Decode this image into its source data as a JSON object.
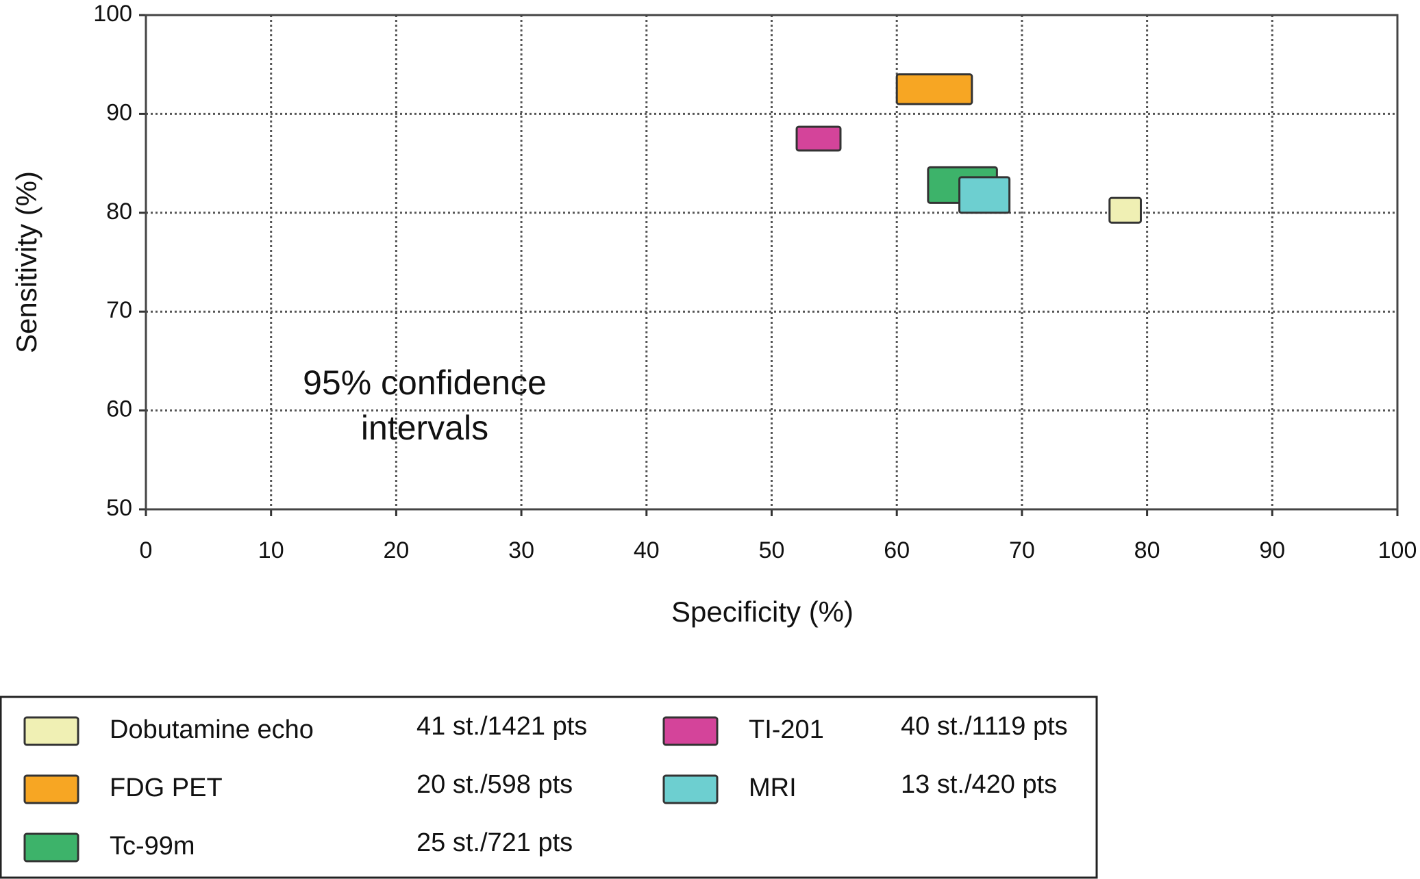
{
  "chart_data": {
    "type": "box",
    "xlabel": "Specificity (%)",
    "ylabel": "Sensitivity (%)",
    "annotation": [
      "95% confidence",
      "intervals"
    ],
    "xlim": [
      0,
      100
    ],
    "xticks": [
      0,
      10,
      20,
      30,
      40,
      50,
      60,
      70,
      80,
      90,
      100
    ],
    "ylim": [
      50,
      100
    ],
    "yticks": [
      50,
      60,
      70,
      80,
      90,
      100
    ],
    "grid": true,
    "series": [
      {
        "name": "Dobutamine echo",
        "note": "41 st./1421 pts",
        "color": "#f0f0b4",
        "x": [
          77,
          79.5
        ],
        "values": [
          79,
          81.5
        ]
      },
      {
        "name": "FDG PET",
        "note": "20 st./598 pts",
        "color": "#f7a623",
        "x": [
          60,
          66
        ],
        "values": [
          91,
          94
        ]
      },
      {
        "name": "Tc-99m",
        "note": "25 st./721 pts",
        "color": "#3db36a",
        "x": [
          62.5,
          68
        ],
        "values": [
          81,
          84.6
        ]
      },
      {
        "name": "TI-201",
        "note": "40 st./1119 pts",
        "color": "#d4449a",
        "x": [
          52,
          55.5
        ],
        "values": [
          86.3,
          88.7
        ]
      },
      {
        "name": "MRI",
        "note": "13 st./420 pts",
        "color": "#6dcfd0",
        "x": [
          65,
          69
        ],
        "values": [
          80,
          83.6
        ]
      }
    ]
  }
}
